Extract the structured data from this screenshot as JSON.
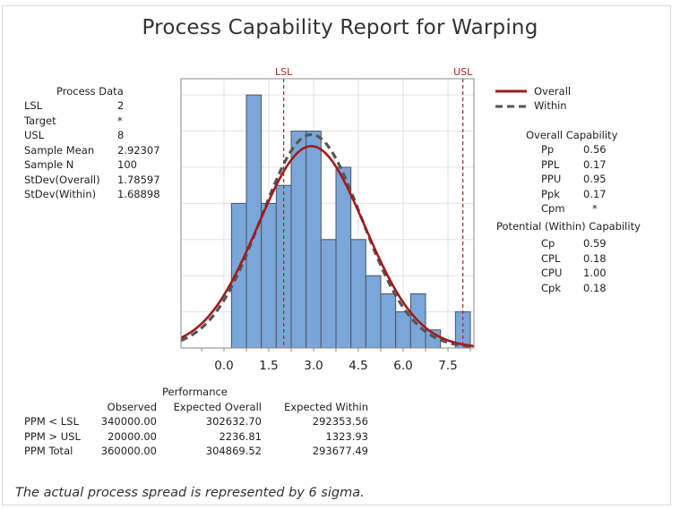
{
  "title": "Process Capability Report for Warping",
  "process_data": {
    "header": "Process Data",
    "rows": [
      {
        "label": "LSL",
        "value": "2"
      },
      {
        "label": "Target",
        "value": "*"
      },
      {
        "label": "USL",
        "value": "8"
      },
      {
        "label": "Sample Mean",
        "value": "2.92307"
      },
      {
        "label": "Sample N",
        "value": "100"
      },
      {
        "label": "StDev(Overall)",
        "value": "1.78597"
      },
      {
        "label": "StDev(Within)",
        "value": "1.68898"
      }
    ]
  },
  "legend": {
    "overall": "Overall",
    "within": "Within"
  },
  "overall_capability": {
    "header": "Overall Capability",
    "rows": [
      {
        "label": "Pp",
        "value": "0.56"
      },
      {
        "label": "PPL",
        "value": "0.17"
      },
      {
        "label": "PPU",
        "value": "0.95"
      },
      {
        "label": "Ppk",
        "value": "0.17"
      },
      {
        "label": "Cpm",
        "value": "*"
      }
    ]
  },
  "within_capability": {
    "header": "Potential (Within) Capability",
    "rows": [
      {
        "label": "Cp",
        "value": "0.59"
      },
      {
        "label": "CPL",
        "value": "0.18"
      },
      {
        "label": "CPU",
        "value": "1.00"
      },
      {
        "label": "Cpk",
        "value": "0.18"
      }
    ]
  },
  "performance": {
    "header": "Performance",
    "columns": [
      "Observed",
      "Expected Overall",
      "Expected Within"
    ],
    "rows": [
      {
        "label": "PPM < LSL",
        "values": [
          "340000.00",
          "302632.70",
          "292353.56"
        ]
      },
      {
        "label": "PPM > USL",
        "values": [
          "20000.00",
          "2236.81",
          "1323.93"
        ]
      },
      {
        "label": "PPM Total",
        "values": [
          "360000.00",
          "304869.52",
          "293677.49"
        ]
      }
    ]
  },
  "note": "The actual process spread is represented by 6 sigma.",
  "colors": {
    "bar_fill": "#7BA6D8",
    "bar_edge": "#4A5462",
    "overall_curve": "#A01C1C",
    "within_curve": "#555555",
    "spec_line": "#B22222",
    "grid": "#E3E3E3"
  },
  "chart_data": {
    "type": "bar",
    "title": "Process Capability Report for Warping",
    "xlabel": "",
    "ylabel": "",
    "bin_width": 0.5,
    "bin_edges": [
      0.25,
      0.75,
      1.25,
      1.75,
      2.25,
      2.75,
      3.25,
      3.75,
      4.25,
      4.75,
      5.25,
      5.75,
      6.25,
      6.75,
      7.25,
      7.75,
      8.25
    ],
    "categories": [
      "0.5",
      "1.0",
      "1.5",
      "2.0",
      "2.5",
      "3.0",
      "3.5",
      "4.0",
      "4.5",
      "5.0",
      "5.5",
      "6.0",
      "6.5",
      "7.0",
      "7.5",
      "8.0"
    ],
    "values": [
      8,
      14,
      8,
      9,
      12,
      12,
      6,
      10,
      6,
      4,
      3,
      2,
      3,
      1,
      0,
      2
    ],
    "xlim": [
      -1.44,
      8.37
    ],
    "ylim": [
      0,
      14.9
    ],
    "x_ticks": [
      "0.0",
      "1.5",
      "3.0",
      "4.5",
      "6.0",
      "7.5"
    ],
    "grid": true,
    "reference_lines": [
      {
        "label": "LSL",
        "x": 2
      },
      {
        "label": "USL",
        "x": 8
      }
    ],
    "series": [
      {
        "name": "Overall",
        "type": "normal_curve",
        "mean": 2.92307,
        "stdev": 1.78597,
        "style": "solid"
      },
      {
        "name": "Within",
        "type": "normal_curve",
        "mean": 2.92307,
        "stdev": 1.68898,
        "style": "dashed"
      }
    ],
    "legend_position": "right"
  }
}
